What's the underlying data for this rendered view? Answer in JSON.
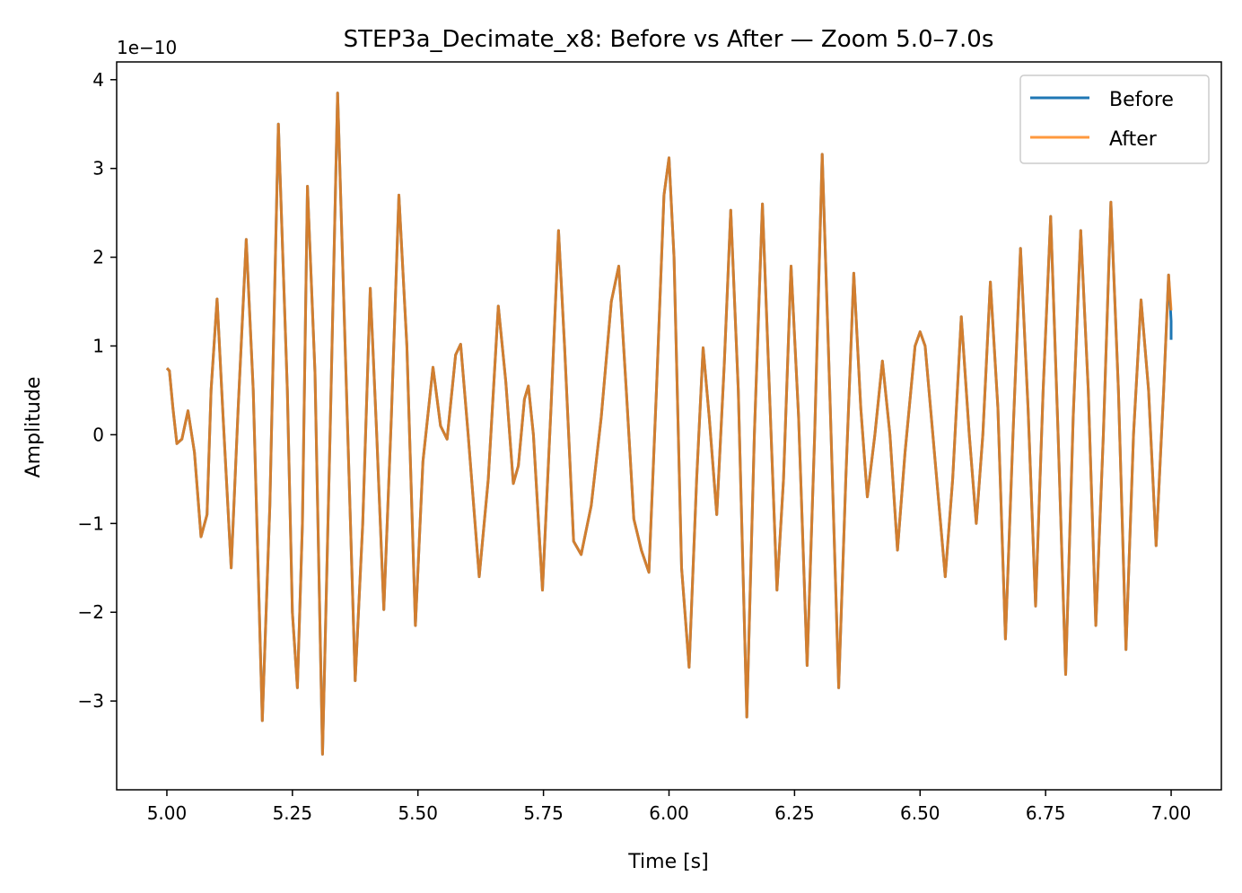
{
  "chart_data": {
    "type": "line",
    "title": "STEP3a_Decimate_x8: Before vs After — Zoom 5.0–7.0s",
    "xlabel": "Time [s]",
    "ylabel": "Amplitude",
    "y_offset_label": "1e−10",
    "xlim": [
      4.9,
      7.1
    ],
    "ylim": [
      -4.0,
      4.2
    ],
    "x_ticks": [
      5.0,
      5.25,
      5.5,
      5.75,
      6.0,
      6.25,
      6.5,
      6.75,
      7.0
    ],
    "x_tick_labels": [
      "5.00",
      "5.25",
      "5.50",
      "5.75",
      "6.00",
      "6.25",
      "6.50",
      "6.75",
      "7.00"
    ],
    "y_ticks": [
      -3,
      -2,
      -1,
      0,
      1,
      2,
      3,
      4
    ],
    "y_tick_labels": [
      "−3",
      "−2",
      "−1",
      "0",
      "1",
      "2",
      "3",
      "4"
    ],
    "legend_position": "top-right",
    "grid": false,
    "series": [
      {
        "name": "Before",
        "color": "#1f77b4",
        "points": [
          [
            5.0,
            0.75
          ],
          [
            5.005,
            0.72
          ],
          [
            5.012,
            0.3
          ],
          [
            5.02,
            -0.1
          ],
          [
            5.03,
            -0.05
          ],
          [
            5.042,
            0.27
          ],
          [
            5.055,
            -0.2
          ],
          [
            5.068,
            -1.15
          ],
          [
            5.08,
            -0.9
          ],
          [
            5.088,
            0.5
          ],
          [
            5.1,
            1.53
          ],
          [
            5.112,
            0.2
          ],
          [
            5.128,
            -1.5
          ],
          [
            5.142,
            0.3
          ],
          [
            5.158,
            2.2
          ],
          [
            5.172,
            0.5
          ],
          [
            5.19,
            -3.22
          ],
          [
            5.205,
            -0.8
          ],
          [
            5.222,
            3.5
          ],
          [
            5.24,
            0.5
          ],
          [
            5.25,
            -2.0
          ],
          [
            5.26,
            -2.85
          ],
          [
            5.27,
            -1.0
          ],
          [
            5.28,
            2.8
          ],
          [
            5.295,
            0.7
          ],
          [
            5.31,
            -3.6
          ],
          [
            5.325,
            0.0
          ],
          [
            5.34,
            3.85
          ],
          [
            5.355,
            1.0
          ],
          [
            5.375,
            -2.77
          ],
          [
            5.39,
            -1.0
          ],
          [
            5.405,
            1.65
          ],
          [
            5.418,
            0.0
          ],
          [
            5.432,
            -1.97
          ],
          [
            5.447,
            0.2
          ],
          [
            5.462,
            2.7
          ],
          [
            5.478,
            1.0
          ],
          [
            5.495,
            -2.15
          ],
          [
            5.51,
            -0.3
          ],
          [
            5.53,
            0.76
          ],
          [
            5.545,
            0.1
          ],
          [
            5.558,
            -0.05
          ],
          [
            5.575,
            0.9
          ],
          [
            5.585,
            1.02
          ],
          [
            5.6,
            0.0
          ],
          [
            5.622,
            -1.6
          ],
          [
            5.64,
            -0.5
          ],
          [
            5.66,
            1.45
          ],
          [
            5.675,
            0.6
          ],
          [
            5.69,
            -0.55
          ],
          [
            5.7,
            -0.35
          ],
          [
            5.712,
            0.4
          ],
          [
            5.72,
            0.55
          ],
          [
            5.73,
            0.0
          ],
          [
            5.748,
            -1.75
          ],
          [
            5.765,
            0.3
          ],
          [
            5.78,
            2.3
          ],
          [
            5.792,
            1.0
          ],
          [
            5.81,
            -1.2
          ],
          [
            5.825,
            -1.35
          ],
          [
            5.845,
            -0.8
          ],
          [
            5.865,
            0.2
          ],
          [
            5.885,
            1.5
          ],
          [
            5.9,
            1.9
          ],
          [
            5.915,
            0.5
          ],
          [
            5.93,
            -0.95
          ],
          [
            5.945,
            -1.3
          ],
          [
            5.96,
            -1.55
          ],
          [
            5.975,
            0.5
          ],
          [
            5.99,
            2.7
          ],
          [
            6.0,
            3.12
          ],
          [
            6.01,
            2.0
          ],
          [
            6.025,
            -1.5
          ],
          [
            6.04,
            -2.62
          ],
          [
            6.055,
            -0.5
          ],
          [
            6.068,
            0.98
          ],
          [
            6.08,
            0.2
          ],
          [
            6.095,
            -0.9
          ],
          [
            6.11,
            0.8
          ],
          [
            6.123,
            2.53
          ],
          [
            6.138,
            0.5
          ],
          [
            6.155,
            -3.18
          ],
          [
            6.17,
            0.0
          ],
          [
            6.186,
            2.6
          ],
          [
            6.2,
            0.5
          ],
          [
            6.215,
            -1.75
          ],
          [
            6.228,
            -0.5
          ],
          [
            6.243,
            1.9
          ],
          [
            6.258,
            0.2
          ],
          [
            6.275,
            -2.6
          ],
          [
            6.29,
            0.0
          ],
          [
            6.305,
            3.16
          ],
          [
            6.32,
            0.5
          ],
          [
            6.338,
            -2.85
          ],
          [
            6.352,
            -0.5
          ],
          [
            6.368,
            1.82
          ],
          [
            6.382,
            0.3
          ],
          [
            6.395,
            -0.7
          ],
          [
            6.41,
            0.0
          ],
          [
            6.425,
            0.83
          ],
          [
            6.44,
            0.0
          ],
          [
            6.455,
            -1.3
          ],
          [
            6.47,
            -0.2
          ],
          [
            6.49,
            1.0
          ],
          [
            6.5,
            1.16
          ],
          [
            6.51,
            1.0
          ],
          [
            6.53,
            -0.3
          ],
          [
            6.55,
            -1.6
          ],
          [
            6.565,
            -0.5
          ],
          [
            6.582,
            1.33
          ],
          [
            6.598,
            0.0
          ],
          [
            6.612,
            -1.0
          ],
          [
            6.625,
            0.0
          ],
          [
            6.64,
            1.72
          ],
          [
            6.655,
            0.3
          ],
          [
            6.67,
            -2.3
          ],
          [
            6.685,
            0.0
          ],
          [
            6.7,
            2.1
          ],
          [
            6.715,
            0.3
          ],
          [
            6.73,
            -1.93
          ],
          [
            6.745,
            0.5
          ],
          [
            6.76,
            2.46
          ],
          [
            6.775,
            0.0
          ],
          [
            6.79,
            -2.7
          ],
          [
            6.805,
            0.2
          ],
          [
            6.82,
            2.3
          ],
          [
            6.835,
            0.5
          ],
          [
            6.85,
            -2.15
          ],
          [
            6.865,
            0.0
          ],
          [
            6.88,
            2.62
          ],
          [
            6.895,
            0.5
          ],
          [
            6.91,
            -2.42
          ],
          [
            6.925,
            0.0
          ],
          [
            6.94,
            1.52
          ],
          [
            6.955,
            0.5
          ],
          [
            6.97,
            -1.25
          ],
          [
            6.985,
            0.5
          ],
          [
            6.995,
            1.8
          ],
          [
            7.0,
            1.28
          ],
          [
            7.0,
            1.07
          ]
        ]
      },
      {
        "name": "After",
        "color": "#ff7f0e",
        "points": [
          [
            5.0,
            0.75
          ],
          [
            5.005,
            0.72
          ],
          [
            5.012,
            0.3
          ],
          [
            5.02,
            -0.1
          ],
          [
            5.03,
            -0.05
          ],
          [
            5.042,
            0.27
          ],
          [
            5.055,
            -0.2
          ],
          [
            5.068,
            -1.15
          ],
          [
            5.08,
            -0.9
          ],
          [
            5.088,
            0.5
          ],
          [
            5.1,
            1.53
          ],
          [
            5.112,
            0.2
          ],
          [
            5.128,
            -1.5
          ],
          [
            5.142,
            0.3
          ],
          [
            5.158,
            2.2
          ],
          [
            5.172,
            0.5
          ],
          [
            5.19,
            -3.22
          ],
          [
            5.205,
            -0.8
          ],
          [
            5.222,
            3.5
          ],
          [
            5.24,
            0.5
          ],
          [
            5.25,
            -2.0
          ],
          [
            5.26,
            -2.85
          ],
          [
            5.27,
            -1.0
          ],
          [
            5.28,
            2.8
          ],
          [
            5.295,
            0.7
          ],
          [
            5.31,
            -3.6
          ],
          [
            5.325,
            0.0
          ],
          [
            5.34,
            3.85
          ],
          [
            5.355,
            1.0
          ],
          [
            5.375,
            -2.77
          ],
          [
            5.39,
            -1.0
          ],
          [
            5.405,
            1.65
          ],
          [
            5.418,
            0.0
          ],
          [
            5.432,
            -1.97
          ],
          [
            5.447,
            0.2
          ],
          [
            5.462,
            2.7
          ],
          [
            5.478,
            1.0
          ],
          [
            5.495,
            -2.15
          ],
          [
            5.51,
            -0.3
          ],
          [
            5.53,
            0.76
          ],
          [
            5.545,
            0.1
          ],
          [
            5.558,
            -0.05
          ],
          [
            5.575,
            0.9
          ],
          [
            5.585,
            1.02
          ],
          [
            5.6,
            0.0
          ],
          [
            5.622,
            -1.6
          ],
          [
            5.64,
            -0.5
          ],
          [
            5.66,
            1.45
          ],
          [
            5.675,
            0.6
          ],
          [
            5.69,
            -0.55
          ],
          [
            5.7,
            -0.35
          ],
          [
            5.712,
            0.4
          ],
          [
            5.72,
            0.55
          ],
          [
            5.73,
            0.0
          ],
          [
            5.748,
            -1.75
          ],
          [
            5.765,
            0.3
          ],
          [
            5.78,
            2.3
          ],
          [
            5.792,
            1.0
          ],
          [
            5.81,
            -1.2
          ],
          [
            5.825,
            -1.35
          ],
          [
            5.845,
            -0.8
          ],
          [
            5.865,
            0.2
          ],
          [
            5.885,
            1.5
          ],
          [
            5.9,
            1.9
          ],
          [
            5.915,
            0.5
          ],
          [
            5.93,
            -0.95
          ],
          [
            5.945,
            -1.3
          ],
          [
            5.96,
            -1.55
          ],
          [
            5.975,
            0.5
          ],
          [
            5.99,
            2.7
          ],
          [
            6.0,
            3.12
          ],
          [
            6.01,
            2.0
          ],
          [
            6.025,
            -1.5
          ],
          [
            6.04,
            -2.62
          ],
          [
            6.055,
            -0.5
          ],
          [
            6.068,
            0.98
          ],
          [
            6.08,
            0.2
          ],
          [
            6.095,
            -0.9
          ],
          [
            6.11,
            0.8
          ],
          [
            6.123,
            2.53
          ],
          [
            6.138,
            0.5
          ],
          [
            6.155,
            -3.18
          ],
          [
            6.17,
            0.0
          ],
          [
            6.186,
            2.6
          ],
          [
            6.2,
            0.5
          ],
          [
            6.215,
            -1.75
          ],
          [
            6.228,
            -0.5
          ],
          [
            6.243,
            1.9
          ],
          [
            6.258,
            0.2
          ],
          [
            6.275,
            -2.6
          ],
          [
            6.29,
            0.0
          ],
          [
            6.305,
            3.16
          ],
          [
            6.32,
            0.5
          ],
          [
            6.338,
            -2.85
          ],
          [
            6.352,
            -0.5
          ],
          [
            6.368,
            1.82
          ],
          [
            6.382,
            0.3
          ],
          [
            6.395,
            -0.7
          ],
          [
            6.41,
            0.0
          ],
          [
            6.425,
            0.83
          ],
          [
            6.44,
            0.0
          ],
          [
            6.455,
            -1.3
          ],
          [
            6.47,
            -0.2
          ],
          [
            6.49,
            1.0
          ],
          [
            6.5,
            1.16
          ],
          [
            6.51,
            1.0
          ],
          [
            6.53,
            -0.3
          ],
          [
            6.55,
            -1.6
          ],
          [
            6.565,
            -0.5
          ],
          [
            6.582,
            1.33
          ],
          [
            6.598,
            0.0
          ],
          [
            6.612,
            -1.0
          ],
          [
            6.625,
            0.0
          ],
          [
            6.64,
            1.72
          ],
          [
            6.655,
            0.3
          ],
          [
            6.67,
            -2.3
          ],
          [
            6.685,
            0.0
          ],
          [
            6.7,
            2.1
          ],
          [
            6.715,
            0.3
          ],
          [
            6.73,
            -1.93
          ],
          [
            6.745,
            0.5
          ],
          [
            6.76,
            2.46
          ],
          [
            6.775,
            0.0
          ],
          [
            6.79,
            -2.7
          ],
          [
            6.805,
            0.2
          ],
          [
            6.82,
            2.3
          ],
          [
            6.835,
            0.5
          ],
          [
            6.85,
            -2.15
          ],
          [
            6.865,
            0.0
          ],
          [
            6.88,
            2.62
          ],
          [
            6.895,
            0.5
          ],
          [
            6.91,
            -2.42
          ],
          [
            6.925,
            0.0
          ],
          [
            6.94,
            1.52
          ],
          [
            6.955,
            0.5
          ],
          [
            6.97,
            -1.25
          ],
          [
            6.985,
            0.5
          ],
          [
            6.995,
            1.8
          ],
          [
            7.0,
            1.4
          ]
        ]
      }
    ]
  }
}
